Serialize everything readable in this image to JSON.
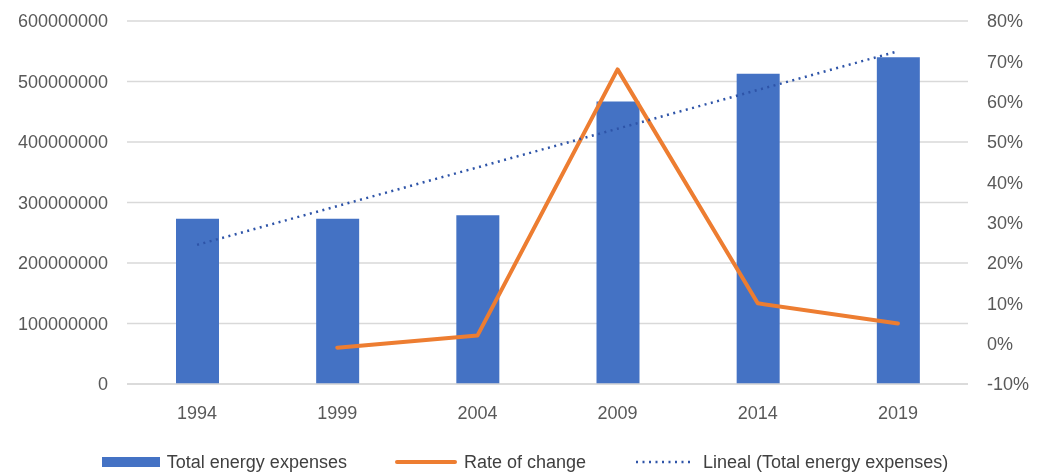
{
  "chart_data": {
    "type": "bar",
    "categories": [
      "1994",
      "1999",
      "2004",
      "2009",
      "2014",
      "2019"
    ],
    "series": [
      {
        "name": "Total energy expenses",
        "color": "#4472c4",
        "values": [
          273000000,
          273000000,
          279000000,
          467000000,
          513000000,
          540000000
        ]
      },
      {
        "name": "Rate of change",
        "type": "line",
        "axis": "y2",
        "color": "#ed7d31",
        "values": [
          null,
          -1,
          2,
          68,
          10,
          5
        ]
      },
      {
        "name": "Lineal (Total energy expenses)",
        "type": "line",
        "color": "#2e54a8",
        "line_style": "dotted",
        "values": [
          230000000,
          294000000,
          358000000,
          422000000,
          486000000,
          550000000
        ]
      }
    ],
    "ylim": [
      0,
      600000000
    ],
    "yticks": [
      0,
      100000000,
      200000000,
      300000000,
      400000000,
      500000000,
      600000000
    ],
    "y2lim": [
      -10,
      80
    ],
    "y2ticks": [
      {
        "value": -10,
        "label": "-10%"
      },
      {
        "value": 0,
        "label": "0%"
      },
      {
        "value": 10,
        "label": "10%"
      },
      {
        "value": 20,
        "label": "20%"
      },
      {
        "value": 30,
        "label": "30%"
      },
      {
        "value": 40,
        "label": "40%"
      },
      {
        "value": 50,
        "label": "50%"
      },
      {
        "value": 60,
        "label": "60%"
      },
      {
        "value": 70,
        "label": "70%"
      },
      {
        "value": 80,
        "label": "80%"
      }
    ],
    "grid": "y",
    "legend": "bottom",
    "marker": "none",
    "line_style": "solid"
  }
}
